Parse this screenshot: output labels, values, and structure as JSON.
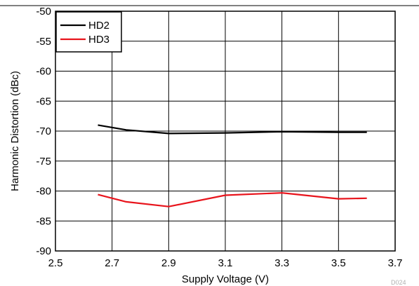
{
  "chart_data": {
    "type": "line",
    "xlabel": "Supply Voltage (V)",
    "ylabel": "Harmonic Distortion (dBc)",
    "xlim": [
      2.5,
      3.7
    ],
    "ylim": [
      -90,
      -50
    ],
    "xticks": [
      "2.5",
      "2.7",
      "2.9",
      "3.1",
      "3.3",
      "3.5",
      "3.7"
    ],
    "yticks": [
      "-50",
      "-55",
      "-60",
      "-65",
      "-70",
      "-75",
      "-80",
      "-85",
      "-90"
    ],
    "grid": true,
    "legend_position": "top-left",
    "series": [
      {
        "name": "HD2",
        "color": "#000000",
        "x": [
          2.65,
          2.75,
          2.9,
          3.1,
          3.3,
          3.5,
          3.6
        ],
        "y": [
          -69.0,
          -69.8,
          -70.4,
          -70.3,
          -70.1,
          -70.2,
          -70.2
        ]
      },
      {
        "name": "HD3",
        "color": "#e8141c",
        "x": [
          2.65,
          2.75,
          2.9,
          3.1,
          3.3,
          3.5,
          3.6
        ],
        "y": [
          -80.6,
          -81.8,
          -82.6,
          -80.7,
          -80.3,
          -81.3,
          -81.2
        ]
      }
    ],
    "watermark": "D024"
  }
}
